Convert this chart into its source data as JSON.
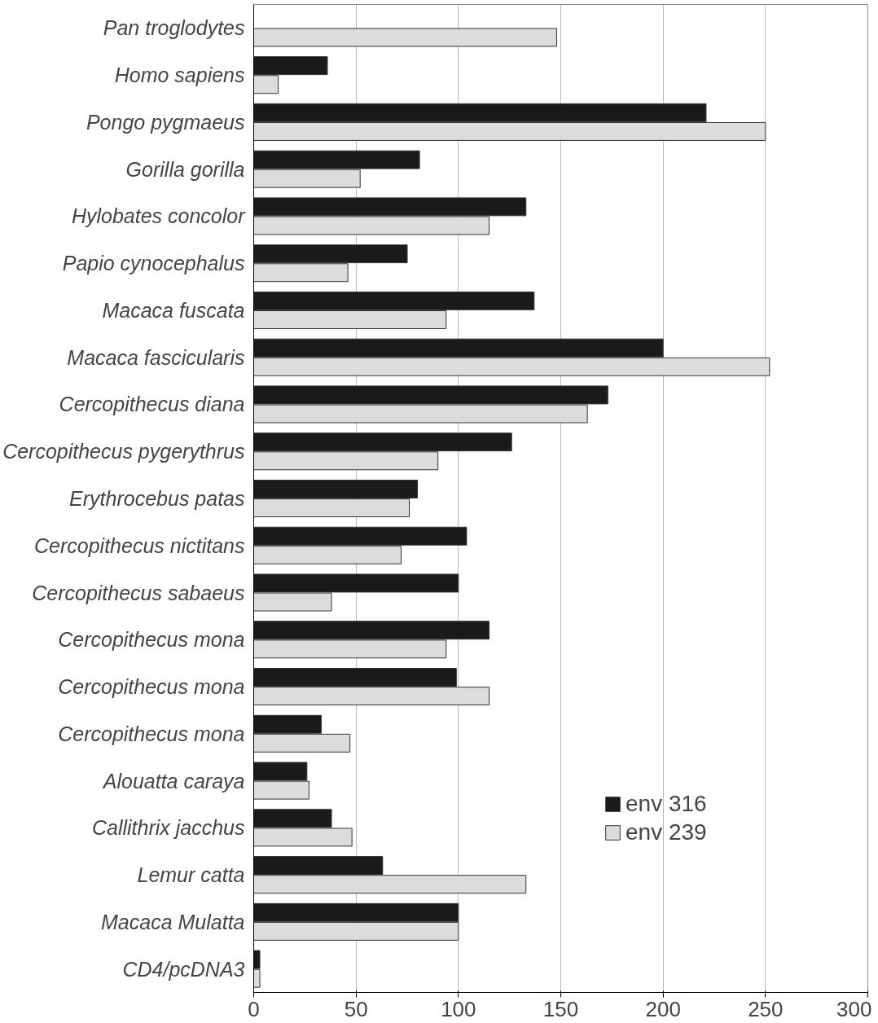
{
  "chart_data": {
    "type": "bar",
    "orientation": "horizontal",
    "categories": [
      "Pan troglodytes",
      "Homo sapiens",
      "Pongo pygmaeus",
      "Gorilla gorilla",
      "Hylobates concolor",
      "Papio cynocephalus",
      "Macaca fuscata",
      "Macaca fascicularis",
      "Cercopithecus diana",
      "Cercopithecus pygerythrus",
      "Erythrocebus patas",
      "Cercopithecus nictitans",
      "Cercopithecus sabaeus",
      "Cercopithecus mona",
      "Cercopithecus mona",
      "Cercopithecus mona",
      "Alouatta caraya",
      "Callithrix jacchus",
      "Lemur catta",
      "Macaca Mulatta",
      "CD4/pcDNA3"
    ],
    "series": [
      {
        "name": "env 316",
        "color": "#1a1a1a",
        "values": [
          null,
          36,
          221,
          81,
          133,
          75,
          137,
          200,
          173,
          126,
          80,
          104,
          100,
          115,
          99,
          33,
          26,
          38,
          63,
          100,
          3
        ]
      },
      {
        "name": "env 239",
        "color": "#dcdcdc",
        "values": [
          148,
          12,
          250,
          52,
          115,
          46,
          94,
          252,
          163,
          90,
          76,
          72,
          38,
          94,
          115,
          47,
          27,
          48,
          133,
          100,
          3
        ]
      }
    ],
    "xlim": [
      0,
      300
    ],
    "xticks": [
      0,
      50,
      100,
      150,
      200,
      250,
      300
    ],
    "grid": "x",
    "legend": "right"
  }
}
